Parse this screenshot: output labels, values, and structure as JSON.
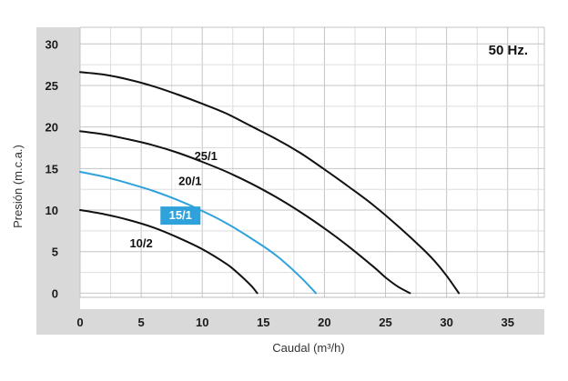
{
  "chart_data": {
    "type": "line",
    "title": "",
    "annotation": "50 Hz.",
    "xlabel": "Caudal (m³/h)",
    "ylabel": "Presión (m.c.a.)",
    "xlim": [
      0,
      38
    ],
    "ylim": [
      -0.5,
      32
    ],
    "xticks": [
      0,
      5,
      10,
      15,
      20,
      25,
      30,
      35
    ],
    "yticks": [
      0,
      5,
      10,
      15,
      20,
      25,
      30
    ],
    "grid": true,
    "series": [
      {
        "name": "25/1",
        "color": "#111111",
        "highlight": false,
        "label_at": [
          10.3,
          16
        ],
        "x": [
          0,
          2,
          4,
          6,
          8,
          10,
          12,
          14,
          16,
          18,
          20,
          22,
          24,
          26,
          28,
          29,
          30,
          31
        ],
        "y": [
          26.6,
          26.3,
          25.7,
          24.9,
          23.9,
          22.8,
          21.6,
          20.1,
          18.6,
          16.9,
          14.9,
          12.8,
          10.6,
          8.1,
          5.4,
          3.9,
          2.1,
          0
        ]
      },
      {
        "name": "20/1",
        "color": "#111111",
        "highlight": false,
        "label_at": [
          9,
          13
        ],
        "x": [
          0,
          2,
          4,
          6,
          8,
          10,
          12,
          14,
          16,
          18,
          20,
          22,
          24,
          25,
          26,
          27
        ],
        "y": [
          19.5,
          19.1,
          18.5,
          17.8,
          16.9,
          15.8,
          14.6,
          13.2,
          11.6,
          9.8,
          7.8,
          5.6,
          3.2,
          1.9,
          0.8,
          0
        ]
      },
      {
        "name": "15/1",
        "color": "#2fa2dc",
        "highlight": true,
        "label_at": [
          6.8,
          8.9
        ],
        "x": [
          0,
          2,
          4,
          6,
          8,
          10,
          12,
          14,
          16,
          18,
          19.3
        ],
        "y": [
          14.6,
          14.0,
          13.2,
          12.3,
          11.2,
          9.9,
          8.4,
          6.6,
          4.6,
          2.0,
          0
        ]
      },
      {
        "name": "10/2",
        "color": "#111111",
        "highlight": false,
        "label_at": [
          5,
          5.5
        ],
        "x": [
          0,
          2,
          4,
          6,
          8,
          10,
          12,
          13,
          14,
          14.5
        ],
        "y": [
          10,
          9.5,
          8.8,
          7.9,
          6.7,
          5.3,
          3.5,
          2.3,
          0.9,
          0
        ]
      }
    ]
  }
}
